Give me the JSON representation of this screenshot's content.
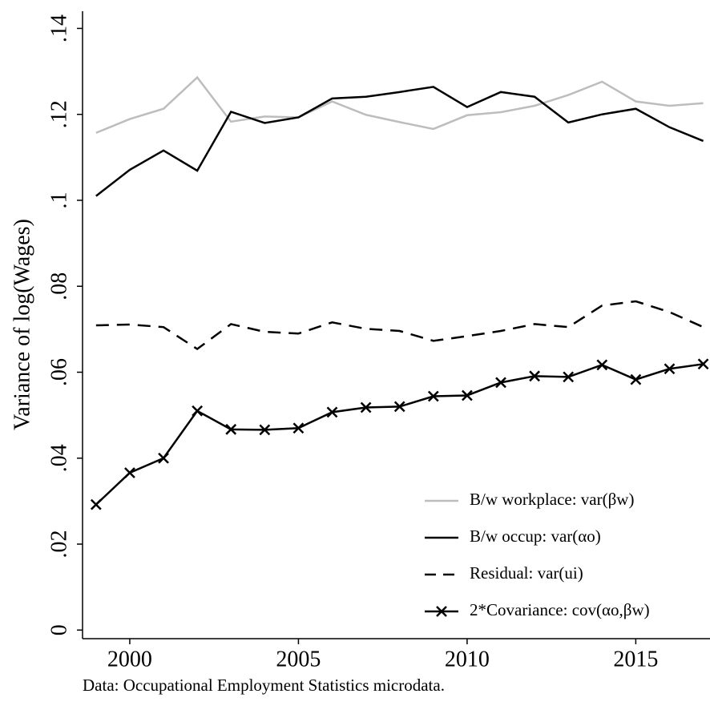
{
  "chart_data": {
    "type": "line",
    "ylabel": "Variance of log(Wages)",
    "note": "Data: Occupational Employment Statistics microdata.",
    "x": [
      1999,
      2000,
      2001,
      2002,
      2003,
      2004,
      2005,
      2006,
      2007,
      2008,
      2009,
      2010,
      2011,
      2012,
      2013,
      2014,
      2015,
      2016,
      2017
    ],
    "series": [
      {
        "name": "B/w workplace: var(βw)",
        "color": "#bdbdbd",
        "dash": "solid",
        "marker": "none",
        "values": [
          0.1157,
          0.1189,
          0.1213,
          0.1286,
          0.1183,
          0.1195,
          0.1193,
          0.123,
          0.1199,
          0.1182,
          0.1166,
          0.1198,
          0.1205,
          0.122,
          0.1245,
          0.1276,
          0.123,
          0.122,
          0.1226
        ]
      },
      {
        "name": "B/w occup: var(αo)",
        "color": "#000000",
        "dash": "solid",
        "marker": "none",
        "values": [
          0.101,
          0.1071,
          0.1116,
          0.1069,
          0.1206,
          0.118,
          0.1193,
          0.1237,
          0.1241,
          0.1252,
          0.1264,
          0.1217,
          0.1252,
          0.1241,
          0.1181,
          0.12,
          0.1213,
          0.117,
          0.1138
        ]
      },
      {
        "name": "Residual: var(ui)",
        "color": "#000000",
        "dash": "dashed",
        "marker": "none",
        "values": [
          0.0709,
          0.0711,
          0.0705,
          0.0654,
          0.0712,
          0.0694,
          0.069,
          0.0716,
          0.0701,
          0.0696,
          0.0673,
          0.0684,
          0.0696,
          0.0712,
          0.0705,
          0.0755,
          0.0765,
          0.074,
          0.0705
        ]
      },
      {
        "name": "2*Covariance: cov(αo,βw)",
        "color": "#000000",
        "dash": "solid",
        "marker": "x",
        "values": [
          0.0292,
          0.0366,
          0.04,
          0.051,
          0.0467,
          0.0466,
          0.047,
          0.0507,
          0.0518,
          0.052,
          0.0544,
          0.0546,
          0.0576,
          0.0591,
          0.0589,
          0.0617,
          0.0583,
          0.0608,
          0.0619
        ]
      }
    ],
    "xlim": [
      1998.6,
      2017.2
    ],
    "xticks": [
      2000,
      2005,
      2010,
      2015
    ],
    "ylim": [
      -0.002,
      0.144
    ],
    "yticks": [
      0,
      {
        "value": 0.02,
        "label": ".02"
      },
      {
        "value": 0.04,
        "label": ".04"
      },
      {
        "value": 0.06,
        "label": ".06"
      },
      {
        "value": 0.08,
        "label": ".08"
      },
      {
        "value": 0.1,
        "label": ".1"
      },
      {
        "value": 0.12,
        "label": ".12"
      },
      {
        "value": 0.14,
        "label": ".14"
      }
    ],
    "grid": false,
    "legend": "lower right"
  }
}
